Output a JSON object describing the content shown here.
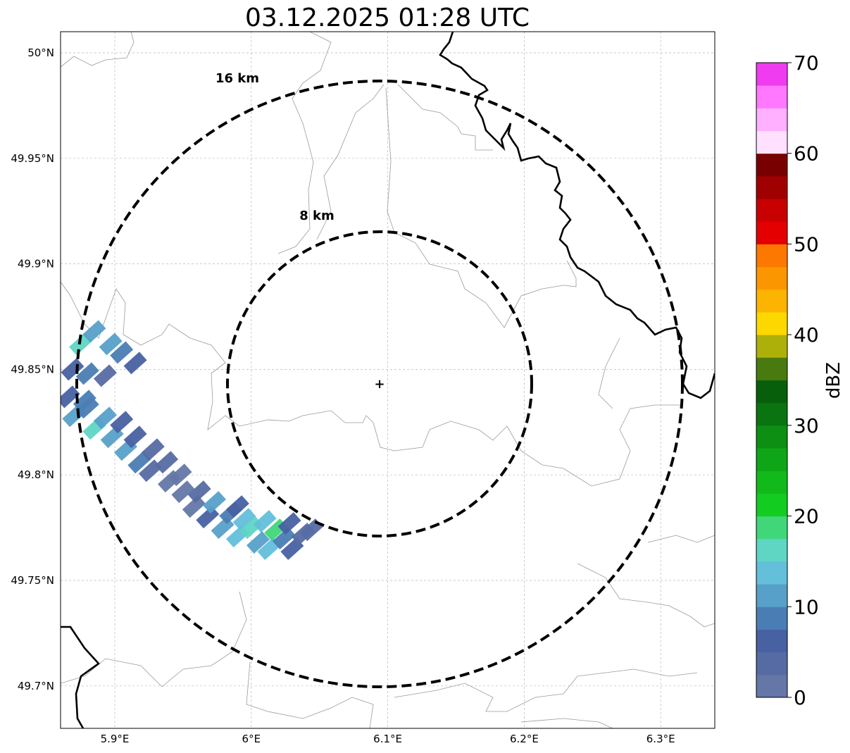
{
  "title": "03.12.2025 01:28 UTC",
  "axes": {
    "lon_ticks": [
      "5.9°E",
      "6°E",
      "6.1°E",
      "6.2°E",
      "6.3°E"
    ],
    "lat_ticks": [
      "50°N",
      "49.95°N",
      "49.9°N",
      "49.85°N",
      "49.8°N",
      "49.75°N",
      "49.7°N"
    ],
    "lon_tick_values": [
      5.9,
      6.0,
      6.1,
      6.2,
      6.3
    ],
    "lat_tick_values": [
      50.0,
      49.95,
      49.9,
      49.85,
      49.8,
      49.75,
      49.7
    ],
    "lon_range": [
      5.86,
      6.34
    ],
    "lat_range": [
      49.68,
      50.01
    ],
    "grid": true
  },
  "radar": {
    "center": {
      "lon": 6.094,
      "lat": 49.843
    },
    "rings": [
      {
        "label": "16 km",
        "radius_km": 16
      },
      {
        "label": "8 km",
        "radius_km": 8
      }
    ]
  },
  "colorbar": {
    "label": "dBZ",
    "ticks": [
      "0",
      "10",
      "20",
      "30",
      "40",
      "50",
      "60",
      "70"
    ],
    "min": 0,
    "max": 70,
    "step": 2.5,
    "colors": [
      "#6477a6",
      "#566ba3",
      "#4861a2",
      "#4a7db4",
      "#57a0c9",
      "#63bfda",
      "#5fd5c4",
      "#40d77a",
      "#12cc1f",
      "#11ba1a",
      "#0ea616",
      "#0c8f12",
      "#0a7510",
      "#085f0b",
      "#487a0f",
      "#aeb00a",
      "#fcd800",
      "#fcb400",
      "#fc9600",
      "#fc7800",
      "#e40000",
      "#c80000",
      "#a00000",
      "#780000",
      "#ffe0ff",
      "#ffb0ff",
      "#ff78ff",
      "#f03cf0"
    ]
  },
  "reflectivity_cells": [
    {
      "lon": 5.875,
      "lat": 49.862,
      "dbz": 16
    },
    {
      "lon": 5.885,
      "lat": 49.868,
      "dbz": 10
    },
    {
      "lon": 5.897,
      "lat": 49.862,
      "dbz": 12
    },
    {
      "lon": 5.905,
      "lat": 49.858,
      "dbz": 8
    },
    {
      "lon": 5.915,
      "lat": 49.853,
      "dbz": 5
    },
    {
      "lon": 5.869,
      "lat": 49.85,
      "dbz": 6
    },
    {
      "lon": 5.88,
      "lat": 49.848,
      "dbz": 9
    },
    {
      "lon": 5.893,
      "lat": 49.847,
      "dbz": 4
    },
    {
      "lon": 5.866,
      "lat": 49.837,
      "dbz": 5
    },
    {
      "lon": 5.87,
      "lat": 49.828,
      "dbz": 12
    },
    {
      "lon": 5.88,
      "lat": 49.832,
      "dbz": 9
    },
    {
      "lon": 5.885,
      "lat": 49.822,
      "dbz": 16
    },
    {
      "lon": 5.893,
      "lat": 49.827,
      "dbz": 11
    },
    {
      "lon": 5.898,
      "lat": 49.818,
      "dbz": 12
    },
    {
      "lon": 5.905,
      "lat": 49.825,
      "dbz": 6
    },
    {
      "lon": 5.908,
      "lat": 49.812,
      "dbz": 10
    },
    {
      "lon": 5.915,
      "lat": 49.818,
      "dbz": 5
    },
    {
      "lon": 5.918,
      "lat": 49.806,
      "dbz": 8
    },
    {
      "lon": 5.928,
      "lat": 49.812,
      "dbz": 4
    },
    {
      "lon": 5.926,
      "lat": 49.802,
      "dbz": 3
    },
    {
      "lon": 5.938,
      "lat": 49.806,
      "dbz": 4
    },
    {
      "lon": 5.94,
      "lat": 49.797,
      "dbz": 2
    },
    {
      "lon": 5.95,
      "lat": 49.792,
      "dbz": 1
    },
    {
      "lon": 5.958,
      "lat": 49.785,
      "dbz": 2
    },
    {
      "lon": 5.962,
      "lat": 49.792,
      "dbz": 4
    },
    {
      "lon": 5.968,
      "lat": 49.78,
      "dbz": 6
    },
    {
      "lon": 5.973,
      "lat": 49.787,
      "dbz": 11
    },
    {
      "lon": 5.979,
      "lat": 49.775,
      "dbz": 12
    },
    {
      "lon": 5.985,
      "lat": 49.782,
      "dbz": 8
    },
    {
      "lon": 5.99,
      "lat": 49.771,
      "dbz": 14
    },
    {
      "lon": 5.995,
      "lat": 49.779,
      "dbz": 13
    },
    {
      "lon": 6.0,
      "lat": 49.775,
      "dbz": 15
    },
    {
      "lon": 6.005,
      "lat": 49.768,
      "dbz": 12
    },
    {
      "lon": 6.01,
      "lat": 49.778,
      "dbz": 13
    },
    {
      "lon": 6.013,
      "lat": 49.765,
      "dbz": 13
    },
    {
      "lon": 6.018,
      "lat": 49.774,
      "dbz": 19
    },
    {
      "lon": 6.024,
      "lat": 49.77,
      "dbz": 8
    },
    {
      "lon": 6.03,
      "lat": 49.765,
      "dbz": 6
    },
    {
      "lon": 6.038,
      "lat": 49.772,
      "dbz": 4
    },
    {
      "lon": 6.044,
      "lat": 49.774,
      "dbz": 3
    },
    {
      "lon": 5.878,
      "lat": 49.835,
      "dbz": 8
    },
    {
      "lon": 5.948,
      "lat": 49.8,
      "dbz": 1
    },
    {
      "lon": 5.99,
      "lat": 49.785,
      "dbz": 5
    },
    {
      "lon": 6.028,
      "lat": 49.777,
      "dbz": 5
    }
  ]
}
